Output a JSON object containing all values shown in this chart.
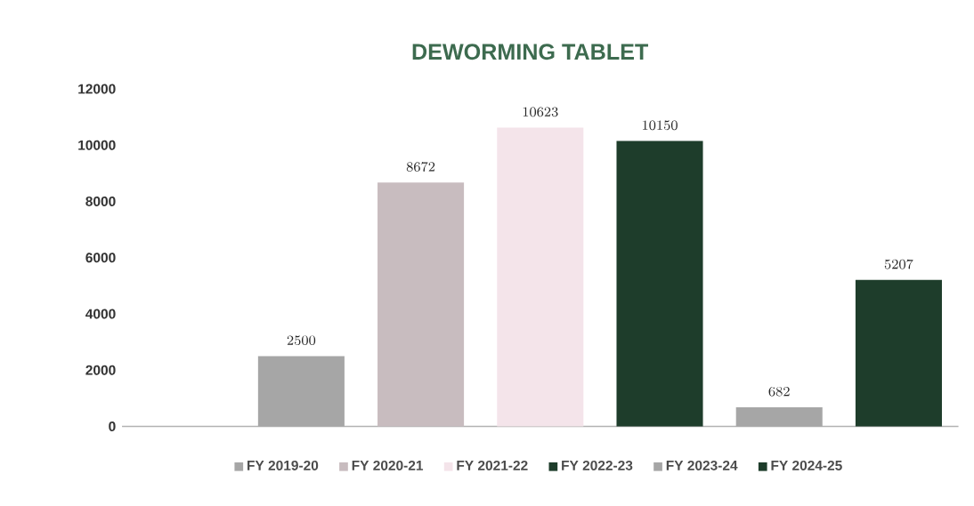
{
  "chart_data": {
    "type": "bar",
    "title": "DEWORMING TABLET",
    "categories": [
      null,
      null,
      null,
      null,
      null,
      null,
      null
    ],
    "series": [
      {
        "name": "FY 2019-20",
        "color": "#a6a6a6",
        "values": [
          null,
          2500,
          null,
          null,
          null,
          null,
          null
        ]
      },
      {
        "name": "FY 2020-21",
        "color": "#c8bcbf",
        "values": [
          null,
          null,
          8672,
          null,
          null,
          null,
          null
        ]
      },
      {
        "name": "FY 2021-22",
        "color": "#f4e4ea",
        "values": [
          null,
          null,
          null,
          10623,
          null,
          null,
          null
        ]
      },
      {
        "name": "FY 2022-23",
        "color": "#1e3d2b",
        "values": [
          null,
          null,
          null,
          null,
          10150,
          null,
          null
        ]
      },
      {
        "name": "FY 2023-24",
        "color": "#a6a6a6",
        "values": [
          null,
          null,
          null,
          null,
          null,
          682,
          null
        ]
      },
      {
        "name": "FY 2024-25",
        "color": "#1e3d2b",
        "values": [
          null,
          null,
          null,
          null,
          null,
          null,
          5207
        ]
      }
    ],
    "ylim": [
      0,
      12000
    ],
    "yticks": [
      0,
      2000,
      4000,
      6000,
      8000,
      10000,
      12000
    ],
    "grid": false,
    "legend": "bottom",
    "data_labels": true,
    "tick_labels": "y"
  }
}
